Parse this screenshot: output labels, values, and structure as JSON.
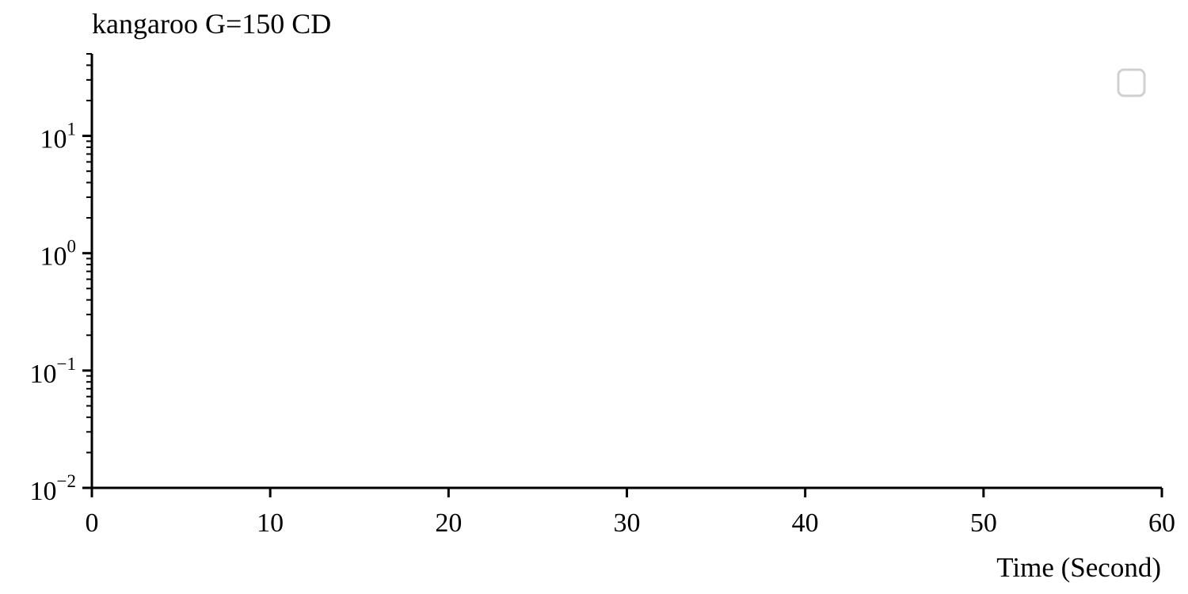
{
  "chart_data": {
    "type": "line",
    "title": "kangaroo G=150 CD",
    "xlabel": "Time (Second)",
    "ylabel": "",
    "x_scale": "linear",
    "y_scale": "log",
    "xlim": [
      0,
      60
    ],
    "ylim": [
      0.01,
      50
    ],
    "x_ticks": [
      0,
      10,
      20,
      30,
      40,
      50,
      60
    ],
    "x_tick_labels": [
      "0",
      "10",
      "20",
      "30",
      "40",
      "50",
      "60"
    ],
    "y_ticks": [
      0.01,
      0.1,
      1,
      10
    ],
    "y_tick_labels": [
      {
        "base": "10",
        "exp": "−2"
      },
      {
        "base": "10",
        "exp": "−1"
      },
      {
        "base": "10",
        "exp": "0"
      },
      {
        "base": "10",
        "exp": "1"
      }
    ],
    "series": [],
    "grid": false,
    "legend": {
      "placement": "top-right",
      "entries": []
    },
    "colors": {
      "axis": "#000000",
      "legend_frame": "#d0d0d0"
    }
  }
}
